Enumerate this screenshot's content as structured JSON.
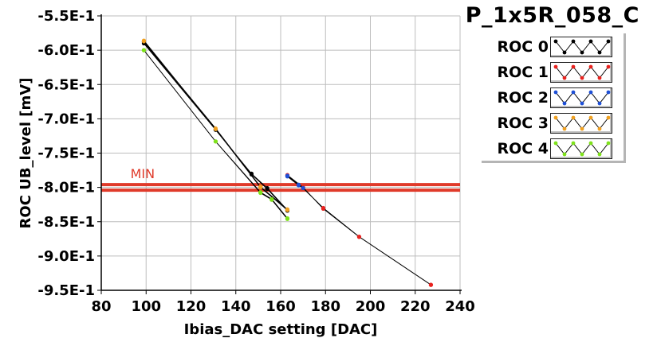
{
  "chart_data": {
    "type": "line",
    "title": "P_1x5R_058_C",
    "xlabel": "Ibias_DAC setting [DAC]",
    "ylabel": "ROC UB_level [mV]",
    "xlim": [
      80,
      240
    ],
    "ylim": [
      -0.95,
      -0.55
    ],
    "xticks": [
      "80",
      "100",
      "120",
      "140",
      "160",
      "180",
      "200",
      "220",
      "240"
    ],
    "yticks": [
      "-5.5E-1",
      "-6.0E-1",
      "-6.5E-1",
      "-7.0E-1",
      "-7.5E-1",
      "-8.0E-1",
      "-8.5E-1",
      "-9.0E-1",
      "-9.5E-1"
    ],
    "legend_position": "top-right",
    "grid": true,
    "min_line": {
      "label": "MIN",
      "values": [
        -0.796,
        -0.804
      ],
      "color": "#e03a2a"
    },
    "series": [
      {
        "name": "ROC 0",
        "color": "#000000",
        "points": [
          [
            99,
            -0.588
          ],
          [
            131,
            -0.716
          ],
          [
            147,
            -0.781
          ],
          [
            154,
            -0.802
          ],
          [
            163,
            -0.834
          ],
          [
            163,
            -0.833
          ],
          [
            154,
            -0.801
          ],
          [
            147,
            -0.78
          ],
          [
            131,
            -0.716
          ],
          [
            99,
            -0.59
          ]
        ]
      },
      {
        "name": "ROC 1",
        "color": "#e8221e",
        "points": [
          [
            163,
            -0.782
          ],
          [
            170,
            -0.8
          ],
          [
            179,
            -0.831
          ],
          [
            195,
            -0.872
          ],
          [
            227,
            -0.942
          ],
          [
            227,
            -0.942
          ],
          [
            195,
            -0.872
          ],
          [
            179,
            -0.83
          ],
          [
            170,
            -0.801
          ],
          [
            163,
            -0.783
          ]
        ]
      },
      {
        "name": "ROC 2",
        "color": "#1e4fd6",
        "points": [
          [
            163,
            -0.783
          ],
          [
            168,
            -0.796
          ],
          [
            170,
            -0.801
          ],
          [
            168,
            -0.797
          ],
          [
            163,
            -0.784
          ]
        ]
      },
      {
        "name": "ROC 3",
        "color": "#f0a020",
        "points": [
          [
            99,
            -0.586
          ],
          [
            131,
            -0.715
          ],
          [
            151,
            -0.8
          ],
          [
            163,
            -0.833
          ],
          [
            163,
            -0.832
          ],
          [
            151,
            -0.799
          ],
          [
            131,
            -0.714
          ],
          [
            99,
            -0.587
          ]
        ]
      },
      {
        "name": "ROC 4",
        "color": "#7ee21a",
        "points": [
          [
            99,
            -0.6
          ],
          [
            131,
            -0.733
          ],
          [
            151,
            -0.808
          ],
          [
            156,
            -0.818
          ],
          [
            163,
            -0.846
          ],
          [
            163,
            -0.845
          ],
          [
            156,
            -0.817
          ],
          [
            151,
            -0.807
          ],
          [
            131,
            -0.733
          ],
          [
            99,
            -0.6
          ]
        ]
      }
    ]
  }
}
